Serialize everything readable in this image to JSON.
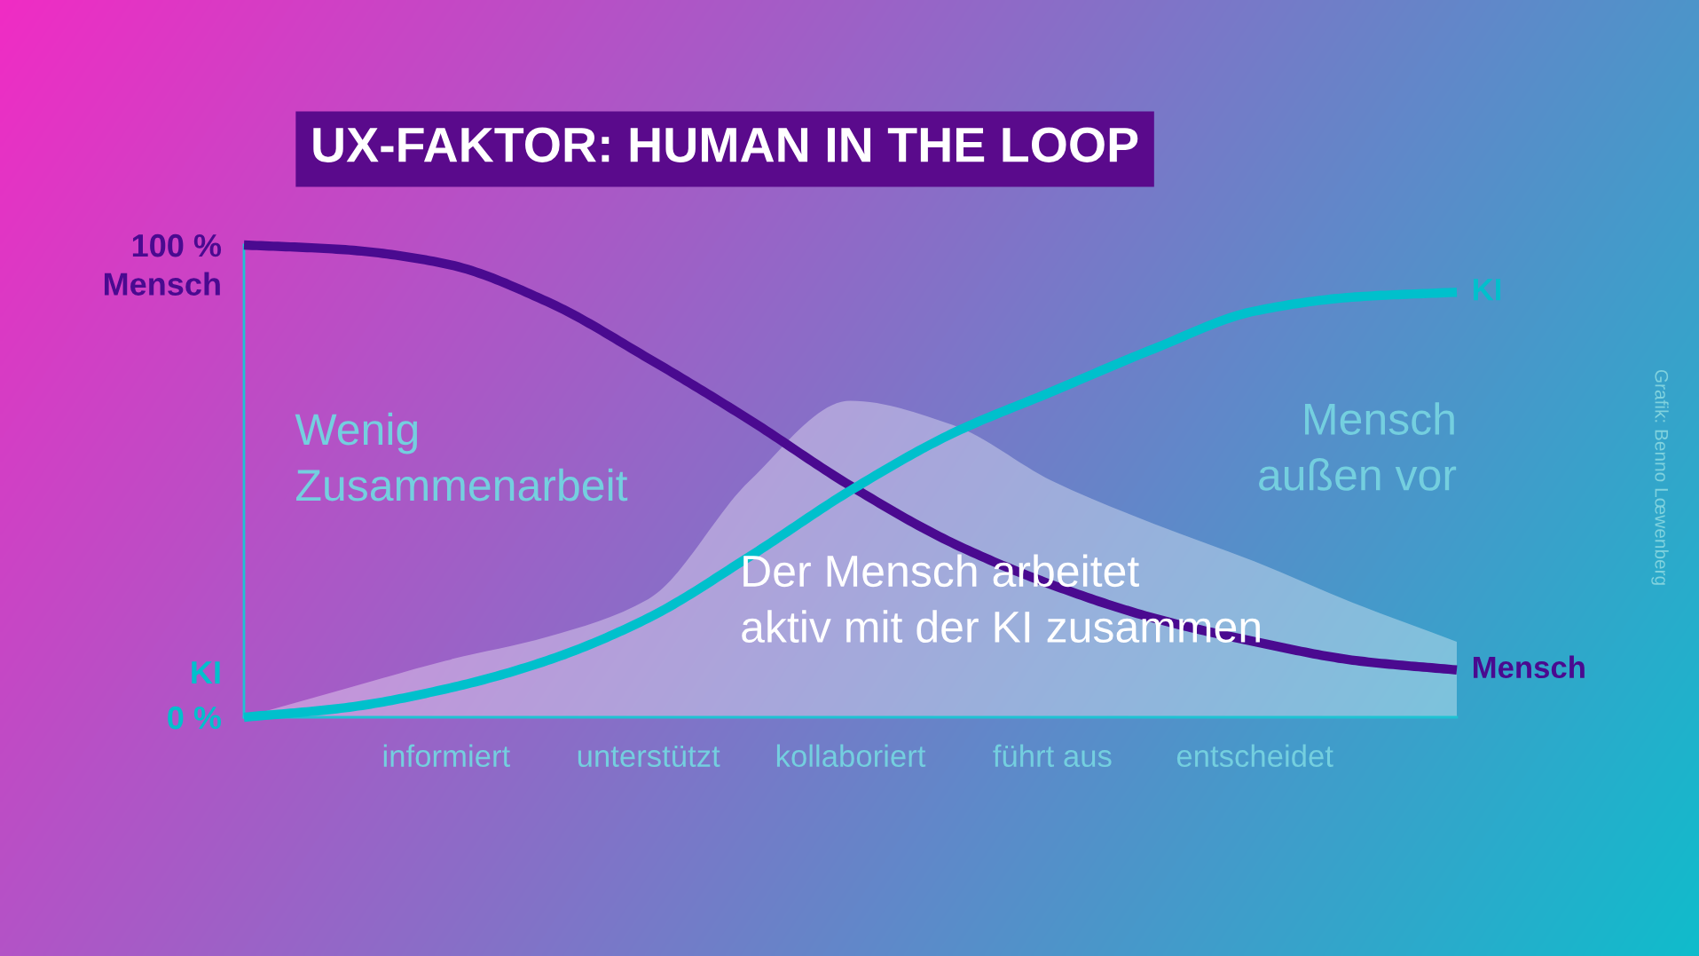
{
  "chart_data": {
    "type": "line",
    "title": "UX-FAKTOR: HUMAN IN THE LOOP",
    "categories": [
      null,
      null,
      "informiert",
      null,
      "unterstützt",
      null,
      "kollaboriert",
      null,
      "führt aus",
      null,
      "entscheidet",
      null,
      null
    ],
    "series": [
      {
        "name": "Mensch",
        "color": "#4a0a90",
        "values": [
          100,
          99,
          96,
          88,
          76,
          63,
          49,
          37,
          28,
          21,
          16,
          12,
          10
        ]
      },
      {
        "name": "KI",
        "color": "#00c0cc",
        "values": [
          0,
          2,
          6,
          12,
          21,
          34,
          48,
          60,
          69,
          78,
          86,
          89,
          90
        ]
      },
      {
        "type": "area",
        "name": "Der Mensch arbeitet\naktiv mit der KI zusammen",
        "color": "#ffffff",
        "values": [
          0,
          6,
          12,
          17,
          25,
          50,
          67,
          62,
          50,
          41,
          33,
          24,
          16
        ]
      }
    ],
    "ylim": [
      0,
      100
    ],
    "yticks": [
      {
        "value": 0,
        "label": "0 %"
      },
      {
        "value": 100,
        "label": "100 %"
      }
    ],
    "annotations": [
      "Wenig\nZusammenarbeit",
      "Mensch\naußen vor",
      "Grafik: Benno Lœwenberg"
    ]
  }
}
